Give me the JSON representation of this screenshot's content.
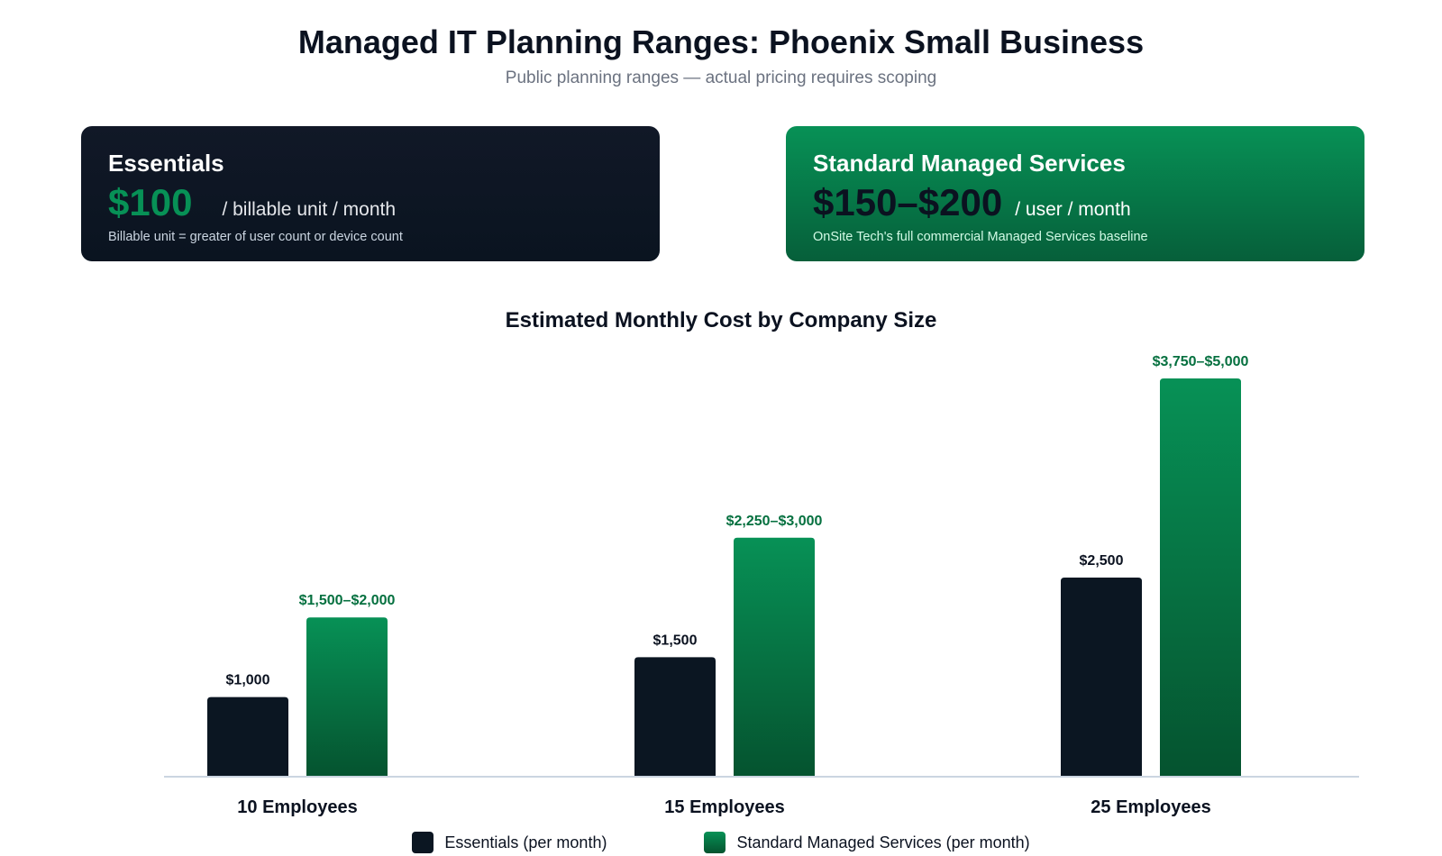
{
  "header": {
    "title": "Managed IT Planning Ranges: Phoenix Small Business",
    "subtitle": "Public planning ranges — actual pricing requires scoping"
  },
  "cards": {
    "essentials": {
      "title": "Essentials",
      "price": "$100",
      "unit": "/ billable unit / month",
      "note": "Billable unit = greater of user count or device count"
    },
    "standard": {
      "title": "Standard Managed Services",
      "price": "$150–$200",
      "unit": "/ user / month",
      "note": "OnSite Tech's full commercial Managed Services baseline"
    }
  },
  "colors": {
    "essentials": "#0b1622",
    "standard_top": "#079156",
    "standard_bottom": "#05532f",
    "standard_label": "#05703f",
    "axis": "#cbd5e1"
  },
  "chart_data": {
    "type": "bar",
    "title": "Estimated Monthly Cost by Company Size",
    "categories": [
      "10 Employees",
      "15 Employees",
      "25 Employees"
    ],
    "series": [
      {
        "name": "Essentials (per month)",
        "values": [
          1000,
          1500,
          2500
        ],
        "labels": [
          "$1,000",
          "$1,500",
          "$2,500"
        ]
      },
      {
        "name": "Standard Managed Services (per month)",
        "values": [
          2000,
          3000,
          5000
        ],
        "labels": [
          "$1,500–$2,000",
          "$2,250–$3,000",
          "$3,750–$5,000"
        ]
      }
    ],
    "ylim": [
      0,
      5000
    ],
    "grid": false,
    "legend": "bottom-center"
  }
}
